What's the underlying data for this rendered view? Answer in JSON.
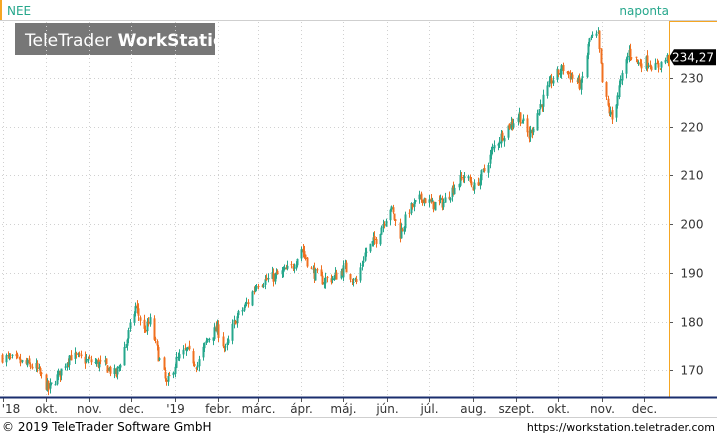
{
  "header": {
    "ticker": "NEE",
    "interval": "naponta",
    "logo_text_light": "TeleTrader",
    "logo_text_bold": "WorkStation"
  },
  "footer": {
    "copyright": "© 2019 TeleTrader Software GmbH",
    "url": "https://workstation.teletrader.com"
  },
  "colors": {
    "up": "#26a78c",
    "down": "#f07020",
    "accent": "#f5a623",
    "axis": "#1a2e6e",
    "grid": "#d0d0d0",
    "last_badge_bg": "#000000",
    "logo_bg": "#777777"
  },
  "chart_data": {
    "type": "candlestick",
    "symbol": "NEE",
    "frequency": "naponta",
    "last_value": "234,27",
    "y_ticks": [
      170,
      180,
      190,
      200,
      210,
      220,
      230
    ],
    "ylim": [
      164.5,
      241.5
    ],
    "x_ticks": [
      {
        "label": "'18",
        "date": "2018-09-01"
      },
      {
        "label": "okt.",
        "date": "2018-10-01"
      },
      {
        "label": "nov.",
        "date": "2018-11-01"
      },
      {
        "label": "dec.",
        "date": "2018-12-01"
      },
      {
        "label": "'19",
        "date": "2019-01-01"
      },
      {
        "label": "febr.",
        "date": "2019-02-01"
      },
      {
        "label": "márc.",
        "date": "2019-03-01"
      },
      {
        "label": "ápr.",
        "date": "2019-04-01"
      },
      {
        "label": "máj.",
        "date": "2019-05-01"
      },
      {
        "label": "jún.",
        "date": "2019-06-01"
      },
      {
        "label": "júl.",
        "date": "2019-07-01"
      },
      {
        "label": "aug.",
        "date": "2019-08-01"
      },
      {
        "label": "szept.",
        "date": "2019-09-01"
      },
      {
        "label": "okt.",
        "date": "2019-10-01"
      },
      {
        "label": "nov.",
        "date": "2019-11-01"
      },
      {
        "label": "dec.",
        "date": "2019-12-01"
      }
    ],
    "xlim": [
      "2018-08-31",
      "2019-12-18"
    ],
    "close_path": [
      [
        "2018-08-31",
        172.8
      ],
      [
        "2018-09-14",
        171.5
      ],
      [
        "2018-09-24",
        170.5
      ],
      [
        "2018-10-03",
        166.0
      ],
      [
        "2018-10-10",
        169.0
      ],
      [
        "2018-10-18",
        173.0
      ],
      [
        "2018-10-30",
        172.0
      ],
      [
        "2018-11-12",
        171.0
      ],
      [
        "2018-11-20",
        169.0
      ],
      [
        "2018-11-28",
        176.5
      ],
      [
        "2018-12-04",
        183.0
      ],
      [
        "2018-12-10",
        178.0
      ],
      [
        "2018-12-14",
        180.0
      ],
      [
        "2018-12-20",
        173.0
      ],
      [
        "2018-12-26",
        167.0
      ],
      [
        "2019-01-02",
        172.0
      ],
      [
        "2019-01-09",
        174.0
      ],
      [
        "2019-01-17",
        171.0
      ],
      [
        "2019-01-24",
        176.5
      ],
      [
        "2019-01-31",
        178.5
      ],
      [
        "2019-02-06",
        174.0
      ],
      [
        "2019-02-13",
        180.5
      ],
      [
        "2019-02-22",
        184.0
      ],
      [
        "2019-02-28",
        188.0
      ],
      [
        "2019-03-07",
        188.5
      ],
      [
        "2019-03-15",
        189.5
      ],
      [
        "2019-03-25",
        191.0
      ],
      [
        "2019-04-01",
        195.0
      ],
      [
        "2019-04-08",
        190.5
      ],
      [
        "2019-04-15",
        188.5
      ],
      [
        "2019-04-24",
        189.0
      ],
      [
        "2019-05-02",
        191.0
      ],
      [
        "2019-05-10",
        188.0
      ],
      [
        "2019-05-16",
        194.0
      ],
      [
        "2019-05-24",
        197.0
      ],
      [
        "2019-06-03",
        203.5
      ],
      [
        "2019-06-10",
        198.0
      ],
      [
        "2019-06-17",
        203.0
      ],
      [
        "2019-06-26",
        205.5
      ],
      [
        "2019-07-03",
        204.0
      ],
      [
        "2019-07-11",
        204.5
      ],
      [
        "2019-07-18",
        207.5
      ],
      [
        "2019-07-26",
        210.0
      ],
      [
        "2019-08-02",
        207.5
      ],
      [
        "2019-08-09",
        211.0
      ],
      [
        "2019-08-16",
        216.0
      ],
      [
        "2019-08-26",
        220.0
      ],
      [
        "2019-09-03",
        222.5
      ],
      [
        "2019-09-10",
        218.0
      ],
      [
        "2019-09-18",
        224.5
      ],
      [
        "2019-09-26",
        229.5
      ],
      [
        "2019-10-04",
        232.0
      ],
      [
        "2019-10-11",
        230.0
      ],
      [
        "2019-10-17",
        228.5
      ],
      [
        "2019-10-23",
        238.0
      ],
      [
        "2019-10-29",
        238.5
      ],
      [
        "2019-11-01",
        229.0
      ],
      [
        "2019-11-05",
        224.0
      ],
      [
        "2019-11-08",
        221.5
      ],
      [
        "2019-11-13",
        228.0
      ],
      [
        "2019-11-20",
        235.5
      ],
      [
        "2019-11-27",
        233.0
      ],
      [
        "2019-12-03",
        233.5
      ],
      [
        "2019-12-09",
        232.0
      ],
      [
        "2019-12-18",
        234.27
      ]
    ]
  }
}
